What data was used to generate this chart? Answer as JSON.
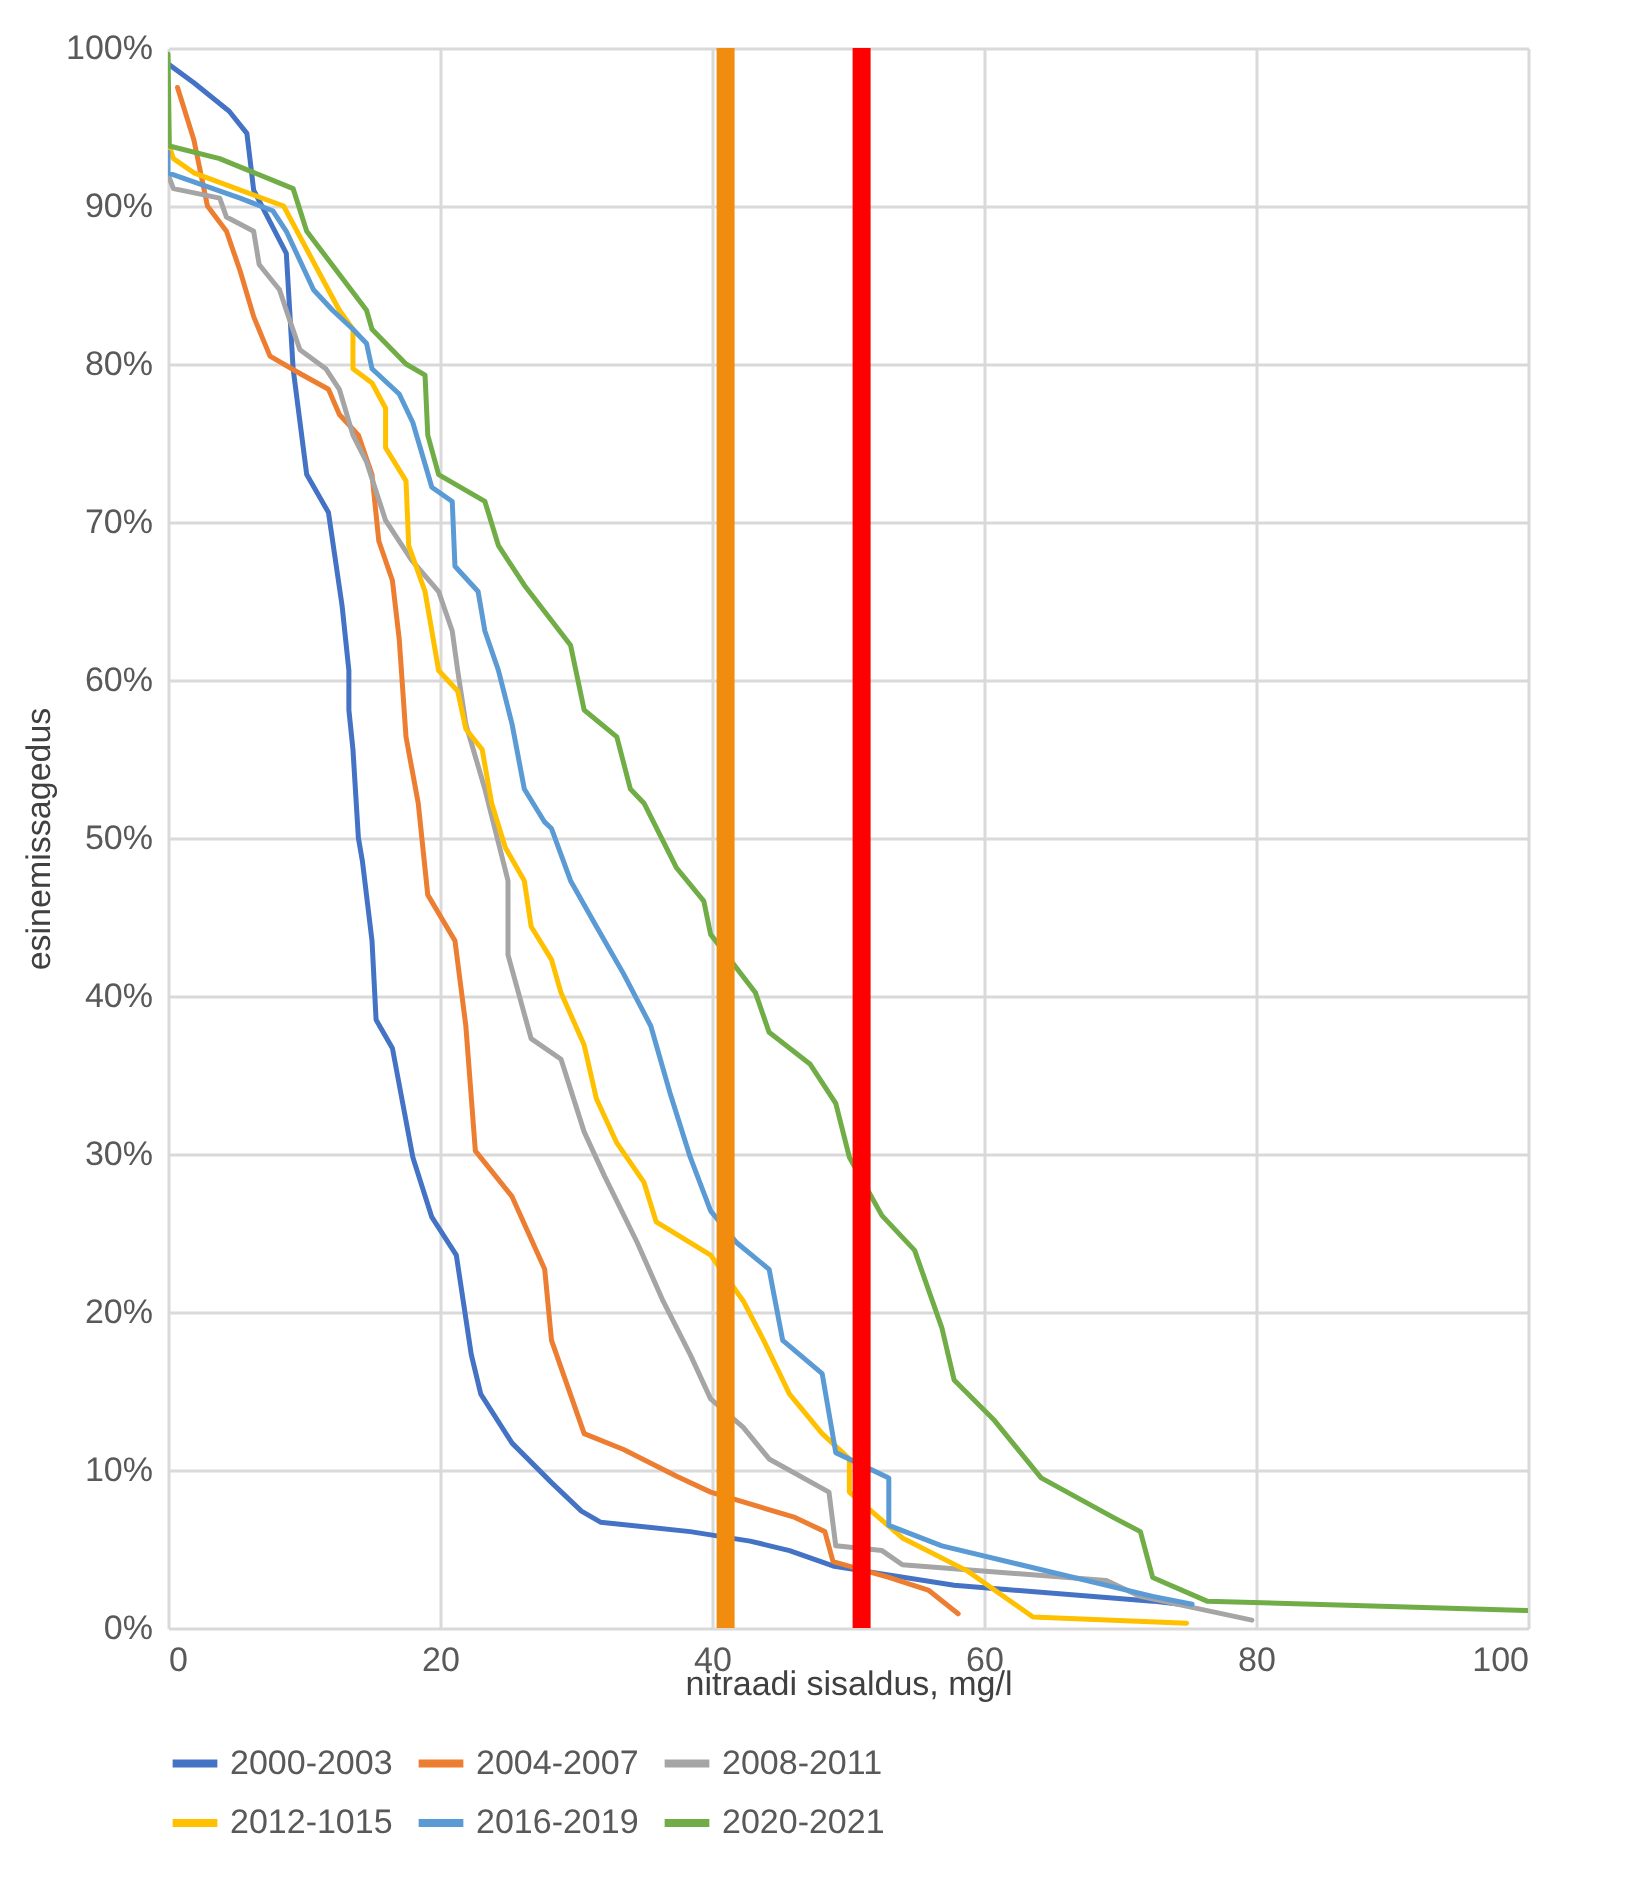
{
  "chart_data": {
    "type": "line",
    "xlabel": "nitraadi sisaldus, mg/l",
    "ylabel": "esinemissagedus",
    "xlim": [
      0,
      100
    ],
    "xticks": [
      0,
      20,
      40,
      60,
      80,
      100
    ],
    "ylim": [
      0,
      100
    ],
    "yticks": [
      {
        "value": 0,
        "label": "0%"
      },
      {
        "value": 10,
        "label": "10%"
      },
      {
        "value": 20,
        "label": "20%"
      },
      {
        "value": 30,
        "label": "30%"
      },
      {
        "value": 40,
        "label": "40%"
      },
      {
        "value": 50,
        "label": "50%"
      },
      {
        "value": 60,
        "label": "60%"
      },
      {
        "value": 70,
        "label": "70%"
      },
      {
        "value": 80,
        "label": "80%"
      },
      {
        "value": 90,
        "label": "90%"
      },
      {
        "value": 100,
        "label": "100%"
      }
    ],
    "grid": true,
    "legend": "bottom",
    "ref_lines": [
      {
        "axis": "x",
        "value": 41,
        "color": "#f28c0f"
      },
      {
        "axis": "x",
        "value": 51,
        "color": "#ff0000"
      }
    ],
    "series": [
      {
        "name": "2000-2003",
        "color": "#4472c4",
        "x": [
          0,
          1.9,
          4.5,
          5.8,
          6.3,
          8.7,
          9.2,
          10.2,
          11.8,
          12.8,
          13.3,
          13.3,
          13.6,
          14,
          14.3,
          15,
          15.3,
          16.5,
          18,
          19.4,
          21.2,
          22.3,
          23,
          25.3,
          28.2,
          30.4,
          31.8,
          38.4,
          42.8,
          45.7,
          49,
          57.8,
          72.4,
          74.4
        ],
        "values": [
          99,
          97.8,
          96,
          94.6,
          91,
          87,
          79.7,
          73,
          70.6,
          64.7,
          60.6,
          58.1,
          55.6,
          50,
          48.5,
          43.5,
          38.5,
          36.7,
          29.8,
          26,
          23.6,
          17.3,
          14.8,
          11.7,
          9.2,
          7.4,
          6.7,
          6.1,
          5.5,
          4.9,
          3.9,
          2.7,
          1.7,
          1.5
        ]
      },
      {
        "name": "2004-2007",
        "color": "#ed7d31",
        "x": [
          0.7,
          1.9,
          2.9,
          4.3,
          5.3,
          6.3,
          7.5,
          9.7,
          11.8,
          12.6,
          14,
          15,
          15.5,
          16.5,
          17,
          17.5,
          18.4,
          19.1,
          21.1,
          21.9,
          22.6,
          25.3,
          27.7,
          28.2,
          30.6,
          33.5,
          37.4,
          39.9,
          46.1,
          48.3,
          48.9,
          53,
          55.9,
          58.1
        ],
        "values": [
          97.5,
          94.2,
          90,
          88.4,
          85.9,
          83,
          80.5,
          79.4,
          78.4,
          76.8,
          75.5,
          73,
          68.8,
          66.3,
          62.6,
          56.4,
          52.2,
          46.4,
          43.5,
          38.1,
          30.2,
          27.3,
          22.7,
          18.2,
          12.3,
          11.3,
          9.6,
          8.6,
          7,
          6.1,
          4.2,
          3.2,
          2.4,
          0.9
        ]
      },
      {
        "name": "2008-2011",
        "color": "#a5a5a5",
        "x": [
          0,
          0.4,
          3.8,
          4.3,
          6.3,
          6.7,
          8.2,
          8.7,
          9.7,
          11.6,
          12.6,
          13.6,
          14.6,
          16,
          17.9,
          19.9,
          20.9,
          21.3,
          21.9,
          23.3,
          25,
          25,
          26.7,
          28.9,
          30.6,
          32.1,
          34.5,
          36.4,
          38.4,
          39.9,
          42.3,
          44.2,
          48.6,
          49.1,
          52.5,
          54,
          69,
          71.5,
          79.7
        ],
        "values": [
          92,
          91.1,
          90.5,
          89.3,
          88.4,
          86.3,
          84.7,
          83.4,
          80.9,
          79.7,
          78.4,
          75.5,
          73.8,
          70.1,
          67.6,
          65.6,
          63.1,
          60.6,
          57.2,
          53.1,
          47.3,
          42.6,
          37.3,
          36,
          31.4,
          28.6,
          24.4,
          20.7,
          17.3,
          14.5,
          12.7,
          10.7,
          8.6,
          5.2,
          4.9,
          4,
          3,
          2,
          0.5
        ]
      },
      {
        "name": "2012-1015",
        "color": "#ffc000",
        "x": [
          0,
          0.4,
          1.9,
          8.5,
          11.6,
          12.6,
          13.6,
          13.6,
          15,
          16,
          16,
          17.5,
          17.7,
          18.9,
          19.9,
          21.3,
          21.9,
          23.1,
          23.8,
          24.8,
          26.2,
          26.7,
          28.2,
          28.9,
          30.6,
          31.5,
          33,
          35,
          35.9,
          39.9,
          42.3,
          43.8,
          45.7,
          48.1,
          50.1,
          50.1,
          54,
          58.8,
          63.6,
          74.9
        ],
        "values": [
          94,
          93,
          92.1,
          90,
          85,
          83.4,
          82.2,
          79.7,
          78.8,
          77.2,
          74.7,
          72.6,
          68.5,
          65.6,
          60.6,
          59.3,
          56.9,
          55.6,
          52.2,
          49.4,
          47.3,
          44.4,
          42.3,
          40.2,
          36.9,
          33.5,
          30.7,
          28.2,
          25.7,
          23.6,
          20.7,
          18.2,
          14.8,
          12.3,
          10.7,
          8.6,
          5.7,
          3.6,
          0.7,
          0.3
        ]
      },
      {
        "name": "2016-2019",
        "color": "#5b9bd5",
        "x": [
          0,
          0,
          5.3,
          7.7,
          8.7,
          10.7,
          12.1,
          13.6,
          14.6,
          15,
          17,
          18,
          19.4,
          20.9,
          21.1,
          22.8,
          23.3,
          24.3,
          25.3,
          26.2,
          27.7,
          28.2,
          29.6,
          31.5,
          33.5,
          35.5,
          36.9,
          38.4,
          39.9,
          41.8,
          44.2,
          45.2,
          48.1,
          49.1,
          53,
          53,
          56.9,
          62.7,
          72.4,
          75.3
        ],
        "values": [
          93.4,
          92.1,
          90.5,
          89.7,
          88.4,
          84.7,
          83.4,
          82.2,
          81.3,
          79.7,
          78.1,
          76.3,
          72.2,
          71.3,
          67.2,
          65.6,
          63.1,
          60.6,
          57.2,
          53.1,
          51,
          50.6,
          47.3,
          44.4,
          41.4,
          38.1,
          33.9,
          29.8,
          26.4,
          24.4,
          22.7,
          18.2,
          16.1,
          11.1,
          9.5,
          6.5,
          5.2,
          4,
          2,
          1.5
        ]
      },
      {
        "name": "2020-2021",
        "color": "#70ad47",
        "x": [
          0,
          0.1,
          3.8,
          9.2,
          10.2,
          14.6,
          15,
          17.5,
          18.9,
          19.1,
          19.9,
          23.3,
          24.3,
          26.2,
          29.6,
          30.6,
          33,
          34,
          35,
          37.4,
          39.4,
          39.9,
          43.2,
          44.2,
          47.2,
          49.1,
          50.1,
          52.5,
          54.9,
          56.9,
          57.8,
          60.7,
          64.2,
          69.5,
          71.5,
          72.4,
          76.4,
          100
        ],
        "values": [
          99.6,
          93.8,
          93,
          91.1,
          88.4,
          83.4,
          82.2,
          80,
          79.3,
          75.5,
          73,
          71.3,
          68.5,
          66,
          62.2,
          58.1,
          56.4,
          53.1,
          52.2,
          48.1,
          46,
          43.9,
          40.2,
          37.7,
          35.7,
          33.2,
          29.8,
          26.1,
          23.9,
          19,
          15.7,
          13.2,
          9.5,
          7,
          6.1,
          3.2,
          1.7,
          1.1
        ]
      }
    ]
  }
}
